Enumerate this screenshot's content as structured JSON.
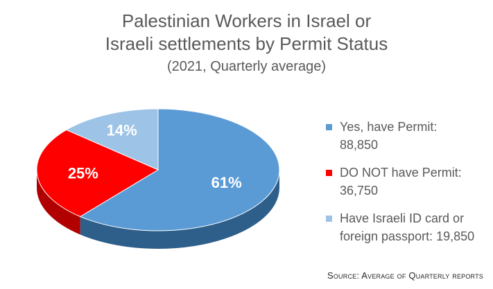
{
  "chart_data": {
    "type": "pie",
    "title_lines": [
      "Palestinian Workers in Israel or",
      "Israeli settlements by Permit Status"
    ],
    "subtitle": "(2021, Quarterly average)",
    "slices": [
      {
        "label": "Yes, have Permit:\n88,850",
        "value": 88850,
        "percent_label": "61%",
        "color": "#5b9bd5",
        "side_color": "#2e5e8a",
        "label_color": "#ffffff"
      },
      {
        "label": "DO NOT have Permit:\n36,750",
        "value": 36750,
        "percent_label": "25%",
        "color": "#ff0000",
        "side_color": "#b00000",
        "label_color": "#ffffff"
      },
      {
        "label": "Have Israeli ID card or\nforeign passport: 19,850",
        "value": 19850,
        "percent_label": "14%",
        "color": "#9dc3e6",
        "side_color": "#6d93b6",
        "label_color": "#ffffff"
      }
    ],
    "legend_position": "right",
    "source": "Source: Average of Quarterly reports"
  }
}
